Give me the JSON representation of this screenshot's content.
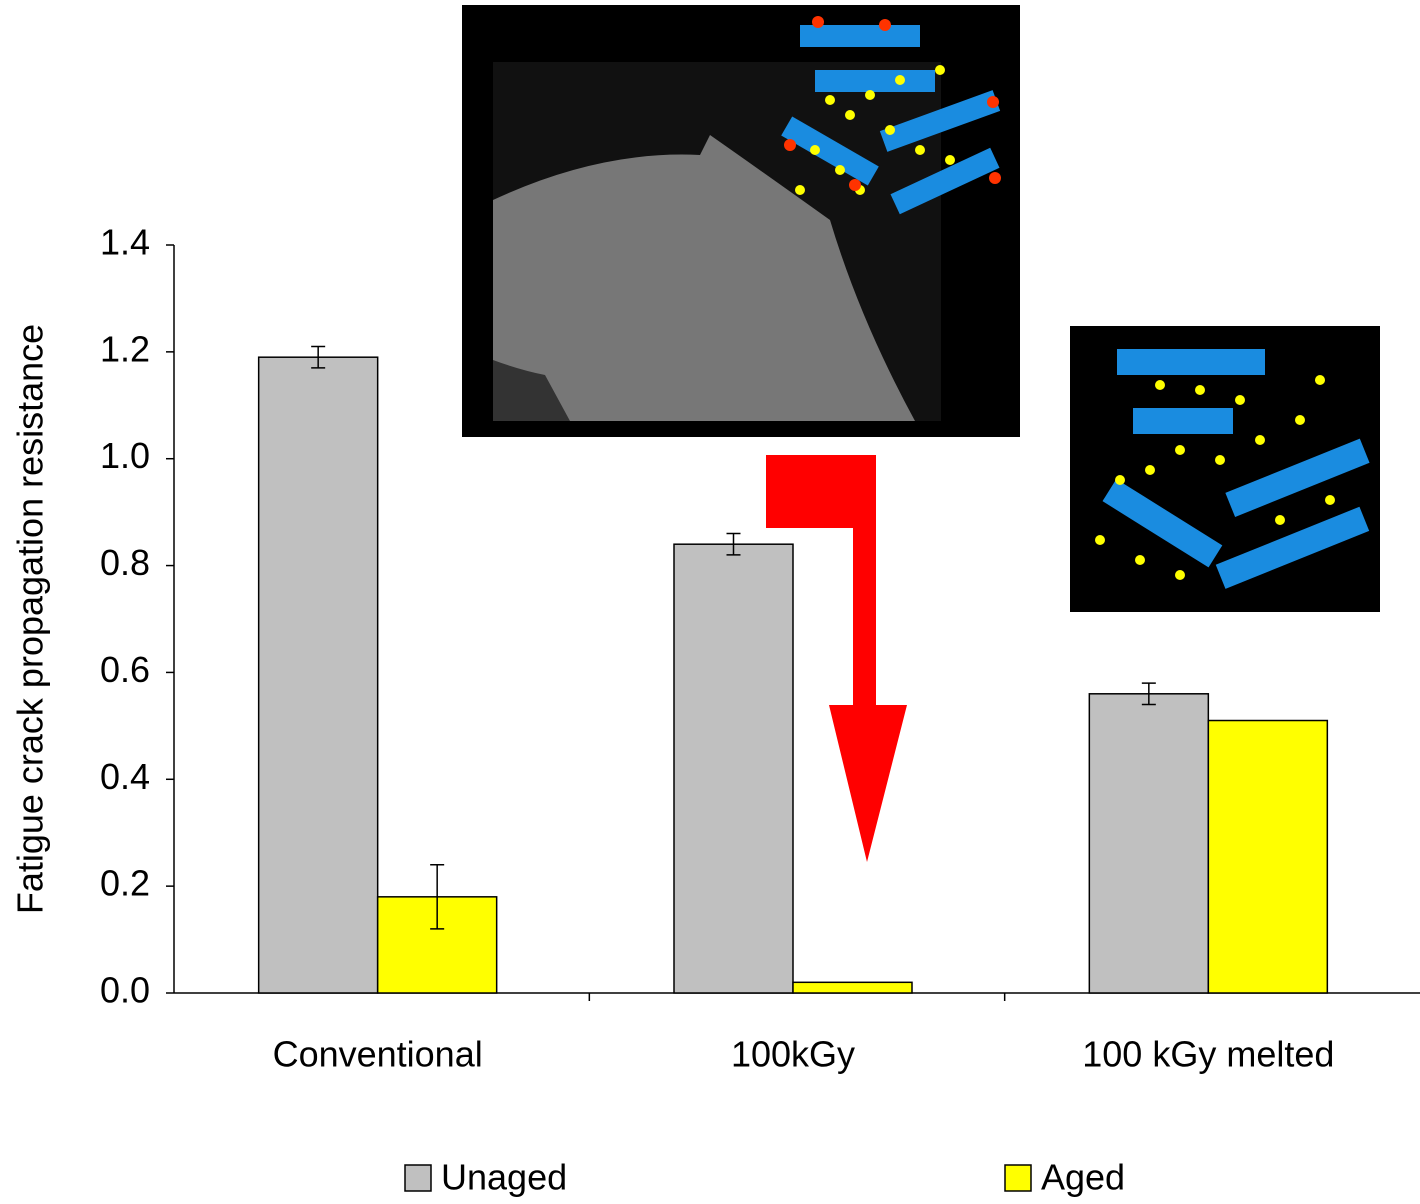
{
  "chart_data": {
    "type": "bar",
    "y_label": "Fatigue crack propagation resistance",
    "categories": [
      "Conventional",
      "100kGy",
      "100 kGy melted"
    ],
    "series": [
      {
        "name": "Unaged",
        "color": "#c0c0c0",
        "values": [
          1.19,
          0.84,
          0.56
        ],
        "errors": [
          0.02,
          0.02,
          0.02
        ]
      },
      {
        "name": "Aged",
        "color": "#ffff00",
        "values": [
          0.18,
          0.02,
          0.51
        ],
        "errors": [
          0.06,
          null,
          null
        ]
      }
    ],
    "ylim": [
      0,
      1.4
    ],
    "yticks": [
      {
        "value": 0,
        "label": "0.0"
      },
      0.2,
      0.4,
      0.6,
      0.8,
      {
        "value": 1,
        "label": "1.0"
      },
      1.2,
      1.4
    ]
  }
}
